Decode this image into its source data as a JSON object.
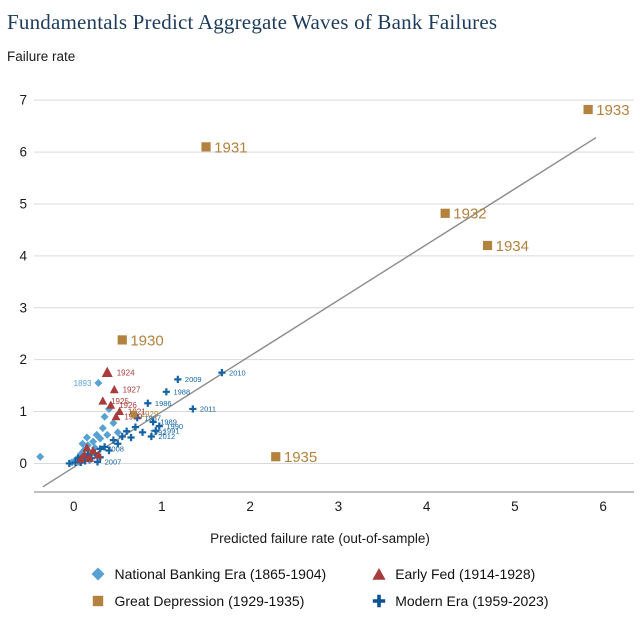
{
  "title": "Fundamentals Predict Aggregate Waves of Bank Failures",
  "chart_data": {
    "type": "scatter",
    "title": "Fundamentals Predict Aggregate Waves of Bank Failures",
    "ylabel": "Failure rate",
    "xlabel": "Predicted failure rate (out-of-sample)",
    "xlim": [
      -0.45,
      6.35
    ],
    "ylim": [
      -0.55,
      7.35
    ],
    "xticks": [
      0,
      1,
      2,
      3,
      4,
      5,
      6
    ],
    "yticks": [
      0,
      1,
      2,
      3,
      4,
      5,
      6,
      7
    ],
    "grid": "horizontal",
    "gridline_color": "#d9d9d9",
    "axis_line_color": "#9a9a9a",
    "tick_label_color": "#1a1a1a",
    "reference_line": {
      "x1": -0.35,
      "y1": -0.45,
      "x2": 5.92,
      "y2": 6.28,
      "color": "#8c8c8c"
    },
    "legend_position": "bottom",
    "series": [
      {
        "name": "National Banking Era (1865-1904)",
        "marker": "diamond",
        "color": "#58a1d3",
        "marker_size": 4,
        "label_size": 8,
        "points": [
          {
            "x": -0.38,
            "y": 0.13
          },
          {
            "x": -0.02,
            "y": 0.02
          },
          {
            "x": 0.03,
            "y": 0.08
          },
          {
            "x": 0.06,
            "y": 0.03
          },
          {
            "x": 0.08,
            "y": 0.18
          },
          {
            "x": 0.1,
            "y": 0.06
          },
          {
            "x": 0.1,
            "y": 0.38
          },
          {
            "x": 0.12,
            "y": 0.26
          },
          {
            "x": 0.14,
            "y": 0.12
          },
          {
            "x": 0.15,
            "y": 0.5
          },
          {
            "x": 0.16,
            "y": 0.35
          },
          {
            "x": 0.18,
            "y": 0.06
          },
          {
            "x": 0.2,
            "y": 0.2
          },
          {
            "x": 0.22,
            "y": 0.42
          },
          {
            "x": 0.24,
            "y": 0.3
          },
          {
            "x": 0.26,
            "y": 0.55
          },
          {
            "x": 0.28,
            "y": 1.55,
            "label": "1893",
            "label_side": "left"
          },
          {
            "x": 0.3,
            "y": 0.48
          },
          {
            "x": 0.33,
            "y": 0.68
          },
          {
            "x": 0.35,
            "y": 0.9
          },
          {
            "x": 0.38,
            "y": 0.55
          },
          {
            "x": 0.4,
            "y": 1.05
          },
          {
            "x": 0.45,
            "y": 0.78
          },
          {
            "x": 0.5,
            "y": 0.6
          }
        ]
      },
      {
        "name": "Early Fed (1914-1928)",
        "marker": "triangle",
        "color": "#a93c3a",
        "marker_size": 4.8,
        "label_size": 8,
        "points": [
          {
            "x": 0.38,
            "y": 1.75,
            "label": "1924",
            "msize": 6
          },
          {
            "x": 0.46,
            "y": 1.42,
            "label": "1927"
          },
          {
            "x": 0.33,
            "y": 1.2,
            "label": "1925"
          },
          {
            "x": 0.42,
            "y": 1.12,
            "label": "1926"
          },
          {
            "x": 0.52,
            "y": 1.0,
            "label": "1921"
          },
          {
            "x": 0.48,
            "y": 0.9,
            "label": "1920"
          },
          {
            "x": 0.08,
            "y": 0.08
          },
          {
            "x": 0.12,
            "y": 0.16
          },
          {
            "x": 0.15,
            "y": 0.3
          },
          {
            "x": 0.18,
            "y": 0.1
          },
          {
            "x": 0.22,
            "y": 0.24
          },
          {
            "x": 0.28,
            "y": 0.16
          }
        ]
      },
      {
        "name": "Modern Era (1959-2023)",
        "marker": "plus",
        "color": "#1464a5",
        "marker_size": 3.6,
        "label_size": 7.5,
        "points": [
          {
            "x": 1.68,
            "y": 1.75,
            "label": "2010"
          },
          {
            "x": 1.18,
            "y": 1.62,
            "label": "2009"
          },
          {
            "x": 1.05,
            "y": 1.38,
            "label": "1988"
          },
          {
            "x": 0.84,
            "y": 1.16,
            "label": "1986"
          },
          {
            "x": 1.35,
            "y": 1.05,
            "label": "2011"
          },
          {
            "x": 0.72,
            "y": 0.88,
            "label": "1987"
          },
          {
            "x": 0.9,
            "y": 0.8,
            "label": "1989"
          },
          {
            "x": 0.97,
            "y": 0.72,
            "label": "1990"
          },
          {
            "x": 0.93,
            "y": 0.63,
            "label": "1991"
          },
          {
            "x": 0.88,
            "y": 0.52,
            "label": "2012"
          },
          {
            "x": 0.78,
            "y": 0.6,
            "label": "1992"
          },
          {
            "x": 0.3,
            "y": 0.28,
            "label": "2008"
          },
          {
            "x": 0.27,
            "y": 0.03,
            "label": "2007"
          },
          {
            "x": -0.05,
            "y": 0.0
          },
          {
            "x": 0.02,
            "y": 0.02
          },
          {
            "x": 0.05,
            "y": 0.1
          },
          {
            "x": 0.08,
            "y": 0.02
          },
          {
            "x": 0.1,
            "y": 0.12
          },
          {
            "x": 0.13,
            "y": 0.05
          },
          {
            "x": 0.16,
            "y": 0.18
          },
          {
            "x": 0.2,
            "y": 0.1
          },
          {
            "x": 0.24,
            "y": 0.2
          },
          {
            "x": 0.3,
            "y": 0.12
          },
          {
            "x": 0.35,
            "y": 0.32
          },
          {
            "x": 0.4,
            "y": 0.25
          },
          {
            "x": 0.45,
            "y": 0.45
          },
          {
            "x": 0.5,
            "y": 0.38
          },
          {
            "x": 0.55,
            "y": 0.52
          },
          {
            "x": 0.6,
            "y": 0.62
          },
          {
            "x": 0.65,
            "y": 0.5
          },
          {
            "x": 0.7,
            "y": 0.7
          }
        ]
      },
      {
        "name": "Great Depression (1929-1935)",
        "marker": "square",
        "color": "#b3823e",
        "marker_size": 4.6,
        "label_size": 15,
        "points": [
          {
            "x": 0.68,
            "y": 0.95,
            "label": "1929",
            "lsize": 8,
            "msize": 3.4
          },
          {
            "x": 0.55,
            "y": 2.38,
            "label": "1930"
          },
          {
            "x": 1.5,
            "y": 6.1,
            "label": "1931"
          },
          {
            "x": 4.21,
            "y": 4.82,
            "label": "1932"
          },
          {
            "x": 5.83,
            "y": 6.82,
            "label": "1933"
          },
          {
            "x": 4.69,
            "y": 4.2,
            "label": "1934"
          },
          {
            "x": 2.29,
            "y": 0.13,
            "label": "1935"
          }
        ]
      }
    ]
  },
  "legend": {
    "order_note": "row1: national-banking, early-fed; row2: great-depression, modern-era"
  }
}
